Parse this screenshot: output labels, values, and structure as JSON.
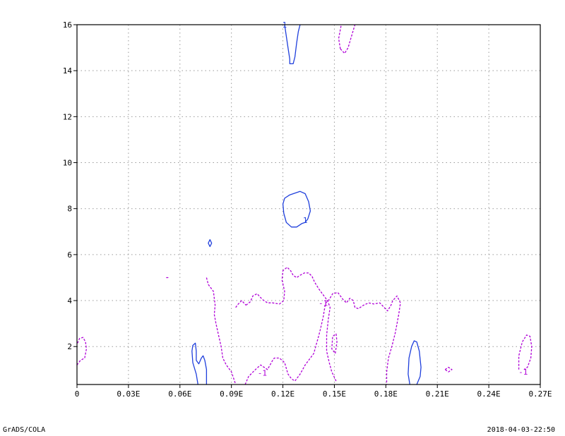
{
  "chart_data": {
    "type": "contour",
    "x_ticks": [
      "0",
      "0.03E",
      "0.06E",
      "0.09E",
      "0.12E",
      "0.15E",
      "0.18E",
      "0.21E",
      "0.24E",
      "0.27E"
    ],
    "x_tick_values": [
      0,
      0.03,
      0.06,
      0.09,
      0.12,
      0.15,
      0.18,
      0.21,
      0.24,
      0.27
    ],
    "y_ticks": [
      "2",
      "4",
      "6",
      "8",
      "10",
      "12",
      "14",
      "16"
    ],
    "y_tick_values": [
      2,
      4,
      6,
      8,
      10,
      12,
      14,
      16
    ],
    "xlim": [
      0,
      0.27
    ],
    "ylim": [
      0.35,
      16
    ],
    "grid": true,
    "colors": {
      "positive": "#1f3fdc",
      "negative": "#b000d8"
    },
    "contours": [
      {
        "level": 1,
        "style": "solid",
        "label": "1",
        "points": [
          [
            0.121,
            16
          ],
          [
            0.122,
            15.5
          ],
          [
            0.123,
            15
          ],
          [
            0.124,
            14.5
          ],
          [
            0.124,
            14.3
          ],
          [
            0.126,
            14.3
          ],
          [
            0.127,
            14.6
          ],
          [
            0.128,
            15.2
          ],
          [
            0.129,
            15.7
          ],
          [
            0.13,
            16
          ]
        ]
      },
      {
        "level": 1,
        "style": "solid",
        "label": "1",
        "closed": true,
        "label_at": [
          0.133,
          7.5
        ],
        "points": [
          [
            0.12,
            8.2
          ],
          [
            0.121,
            8.45
          ],
          [
            0.124,
            8.6
          ],
          [
            0.13,
            8.75
          ],
          [
            0.133,
            8.65
          ],
          [
            0.135,
            8.3
          ],
          [
            0.136,
            7.9
          ],
          [
            0.1345,
            7.55
          ],
          [
            0.133,
            7.4
          ],
          [
            0.131,
            7.35
          ],
          [
            0.128,
            7.2
          ],
          [
            0.125,
            7.2
          ],
          [
            0.122,
            7.4
          ],
          [
            0.1205,
            7.8
          ]
        ]
      },
      {
        "level": 1,
        "style": "solid",
        "closed": true,
        "points": [
          [
            0.0775,
            6.65
          ],
          [
            0.0785,
            6.5
          ],
          [
            0.0775,
            6.35
          ],
          [
            0.0765,
            6.5
          ]
        ]
      },
      {
        "level": 1,
        "style": "solid",
        "points": [
          [
            0.0705,
            0.35
          ],
          [
            0.0695,
            0.8
          ],
          [
            0.0675,
            1.3
          ],
          [
            0.067,
            1.8
          ],
          [
            0.0675,
            2.05
          ],
          [
            0.069,
            2.15
          ],
          [
            0.0695,
            1.8
          ],
          [
            0.0695,
            1.4
          ],
          [
            0.071,
            1.25
          ],
          [
            0.0725,
            1.5
          ],
          [
            0.0735,
            1.6
          ],
          [
            0.0745,
            1.4
          ],
          [
            0.0755,
            1.0
          ],
          [
            0.0755,
            0.6
          ],
          [
            0.0755,
            0.35
          ]
        ]
      },
      {
        "level": 1,
        "style": "solid",
        "points": [
          [
            0.194,
            0.35
          ],
          [
            0.193,
            0.8
          ],
          [
            0.1935,
            1.5
          ],
          [
            0.195,
            2.0
          ],
          [
            0.1965,
            2.25
          ],
          [
            0.198,
            2.2
          ],
          [
            0.1995,
            1.8
          ],
          [
            0.2005,
            1.1
          ],
          [
            0.2,
            0.7
          ],
          [
            0.198,
            0.35
          ]
        ]
      },
      {
        "level": -1,
        "style": "dashed",
        "label": "-1",
        "label_at": [
          0.1435,
          3.9
        ],
        "points": [
          [
            0.0755,
            5.0
          ],
          [
            0.0765,
            4.7
          ],
          [
            0.0795,
            4.4
          ],
          [
            0.0805,
            3.8
          ],
          [
            0.08,
            3.4
          ],
          [
            0.081,
            3.0
          ],
          [
            0.0825,
            2.5
          ],
          [
            0.084,
            2.0
          ],
          [
            0.085,
            1.5
          ],
          [
            0.087,
            1.2
          ],
          [
            0.09,
            0.9
          ],
          [
            0.0925,
            0.35
          ]
        ]
      },
      {
        "level": -1,
        "style": "dashed",
        "points": [
          [
            0.098,
            0.35
          ],
          [
            0.1,
            0.7
          ],
          [
            0.104,
            1.0
          ],
          [
            0.107,
            1.2
          ],
          [
            0.111,
            1.0
          ],
          [
            0.114,
            1.4
          ],
          [
            0.115,
            1.5
          ],
          [
            0.118,
            1.5
          ],
          [
            0.121,
            1.3
          ],
          [
            0.123,
            0.8
          ],
          [
            0.125,
            0.6
          ],
          [
            0.127,
            0.5
          ],
          [
            0.13,
            0.8
          ],
          [
            0.133,
            1.2
          ],
          [
            0.136,
            1.5
          ],
          [
            0.138,
            1.7
          ],
          [
            0.1395,
            2.1
          ],
          [
            0.141,
            2.5
          ],
          [
            0.142,
            2.8
          ],
          [
            0.1435,
            3.3
          ],
          [
            0.1445,
            3.75
          ],
          [
            0.145,
            3.9
          ],
          [
            0.147,
            4.05
          ],
          [
            0.149,
            4.3
          ],
          [
            0.152,
            4.35
          ],
          [
            0.155,
            4.05
          ],
          [
            0.157,
            3.9
          ],
          [
            0.159,
            4.1
          ],
          [
            0.161,
            4.0
          ],
          [
            0.162,
            3.7
          ],
          [
            0.164,
            3.65
          ],
          [
            0.167,
            3.8
          ],
          [
            0.17,
            3.9
          ],
          [
            0.173,
            3.85
          ],
          [
            0.1765,
            3.9
          ],
          [
            0.179,
            3.7
          ],
          [
            0.181,
            3.55
          ],
          [
            0.183,
            3.8
          ],
          [
            0.184,
            4.0
          ],
          [
            0.1865,
            4.2
          ],
          [
            0.1885,
            3.9
          ],
          [
            0.1875,
            3.4
          ],
          [
            0.1855,
            2.6
          ],
          [
            0.1835,
            2.0
          ],
          [
            0.1815,
            1.5
          ],
          [
            0.1805,
            0.9
          ],
          [
            0.1805,
            0.35
          ]
        ]
      },
      {
        "level": -1,
        "style": "dashed",
        "points": [
          [
            0.0985,
            3.8
          ],
          [
            0.101,
            3.95
          ],
          [
            0.1025,
            4.2
          ],
          [
            0.105,
            4.3
          ],
          [
            0.108,
            4.05
          ],
          [
            0.111,
            3.9
          ],
          [
            0.114,
            3.9
          ],
          [
            0.118,
            3.85
          ],
          [
            0.1205,
            4.0
          ],
          [
            0.121,
            4.4
          ],
          [
            0.1195,
            4.9
          ],
          [
            0.12,
            5.3
          ],
          [
            0.1225,
            5.45
          ],
          [
            0.1245,
            5.3
          ],
          [
            0.126,
            5.1
          ],
          [
            0.128,
            5.0
          ],
          [
            0.13,
            5.1
          ],
          [
            0.1325,
            5.2
          ],
          [
            0.135,
            5.2
          ],
          [
            0.137,
            5.05
          ],
          [
            0.1385,
            4.8
          ],
          [
            0.141,
            4.5
          ],
          [
            0.143,
            4.3
          ],
          [
            0.146,
            4.0
          ],
          [
            0.1475,
            3.7
          ],
          [
            0.1465,
            3.2
          ],
          [
            0.1455,
            2.5
          ],
          [
            0.1455,
            1.8
          ],
          [
            0.147,
            1.3
          ],
          [
            0.1485,
            0.9
          ],
          [
            0.151,
            0.5
          ]
        ]
      },
      {
        "level": -1,
        "style": "dashed",
        "label": "-1",
        "label_at": [
          0.108,
          0.85
        ],
        "points": [
          [
            0.0925,
            3.7
          ],
          [
            0.094,
            3.85
          ],
          [
            0.096,
            4.0
          ],
          [
            0.0985,
            3.8
          ]
        ]
      },
      {
        "level": -1,
        "style": "dashed",
        "closed": true,
        "points": [
          [
            0.1505,
            1.7
          ],
          [
            0.1515,
            2.2
          ],
          [
            0.151,
            2.55
          ],
          [
            0.149,
            2.45
          ],
          [
            0.1485,
            1.9
          ]
        ]
      },
      {
        "level": -1,
        "style": "dashed",
        "label": "-1",
        "label_at": [
          0.26,
          0.9
        ],
        "points": [
          [
            0.2575,
            1.0
          ],
          [
            0.2575,
            1.6
          ],
          [
            0.2595,
            2.2
          ],
          [
            0.262,
            2.5
          ],
          [
            0.264,
            2.45
          ],
          [
            0.265,
            2.0
          ],
          [
            0.2645,
            1.5
          ],
          [
            0.2625,
            1.1
          ],
          [
            0.2605,
            1.0
          ]
        ]
      },
      {
        "level": -1,
        "style": "dashed",
        "points": [
          [
            0.0,
            1.2
          ],
          [
            0.002,
            1.4
          ],
          [
            0.0045,
            1.5
          ],
          [
            0.0055,
            1.9
          ],
          [
            0.005,
            2.2
          ],
          [
            0.0035,
            2.4
          ],
          [
            0.0015,
            2.35
          ],
          [
            0.0,
            2.1
          ]
        ]
      },
      {
        "level": -1,
        "style": "dashed",
        "points": [
          [
            0.1535,
            14.95
          ],
          [
            0.1525,
            15.4
          ],
          [
            0.154,
            16
          ]
        ]
      },
      {
        "level": -1,
        "style": "dashed",
        "points": [
          [
            0.1535,
            14.95
          ],
          [
            0.156,
            14.75
          ],
          [
            0.158,
            15.0
          ],
          [
            0.16,
            15.5
          ],
          [
            0.162,
            16
          ]
        ]
      },
      {
        "level": -1,
        "style": "dashed",
        "closed": true,
        "points": [
          [
            0.2145,
            1.0
          ],
          [
            0.2165,
            1.1
          ],
          [
            0.2185,
            1.0
          ],
          [
            0.2165,
            0.9
          ]
        ]
      },
      {
        "level": -1,
        "style": "dashed",
        "closed": true,
        "points": [
          [
            0.052,
            5.0
          ],
          [
            0.053,
            5.0
          ]
        ]
      }
    ]
  },
  "footer": {
    "left": "GrADS/COLA",
    "right": "2018-04-03-22:50"
  }
}
